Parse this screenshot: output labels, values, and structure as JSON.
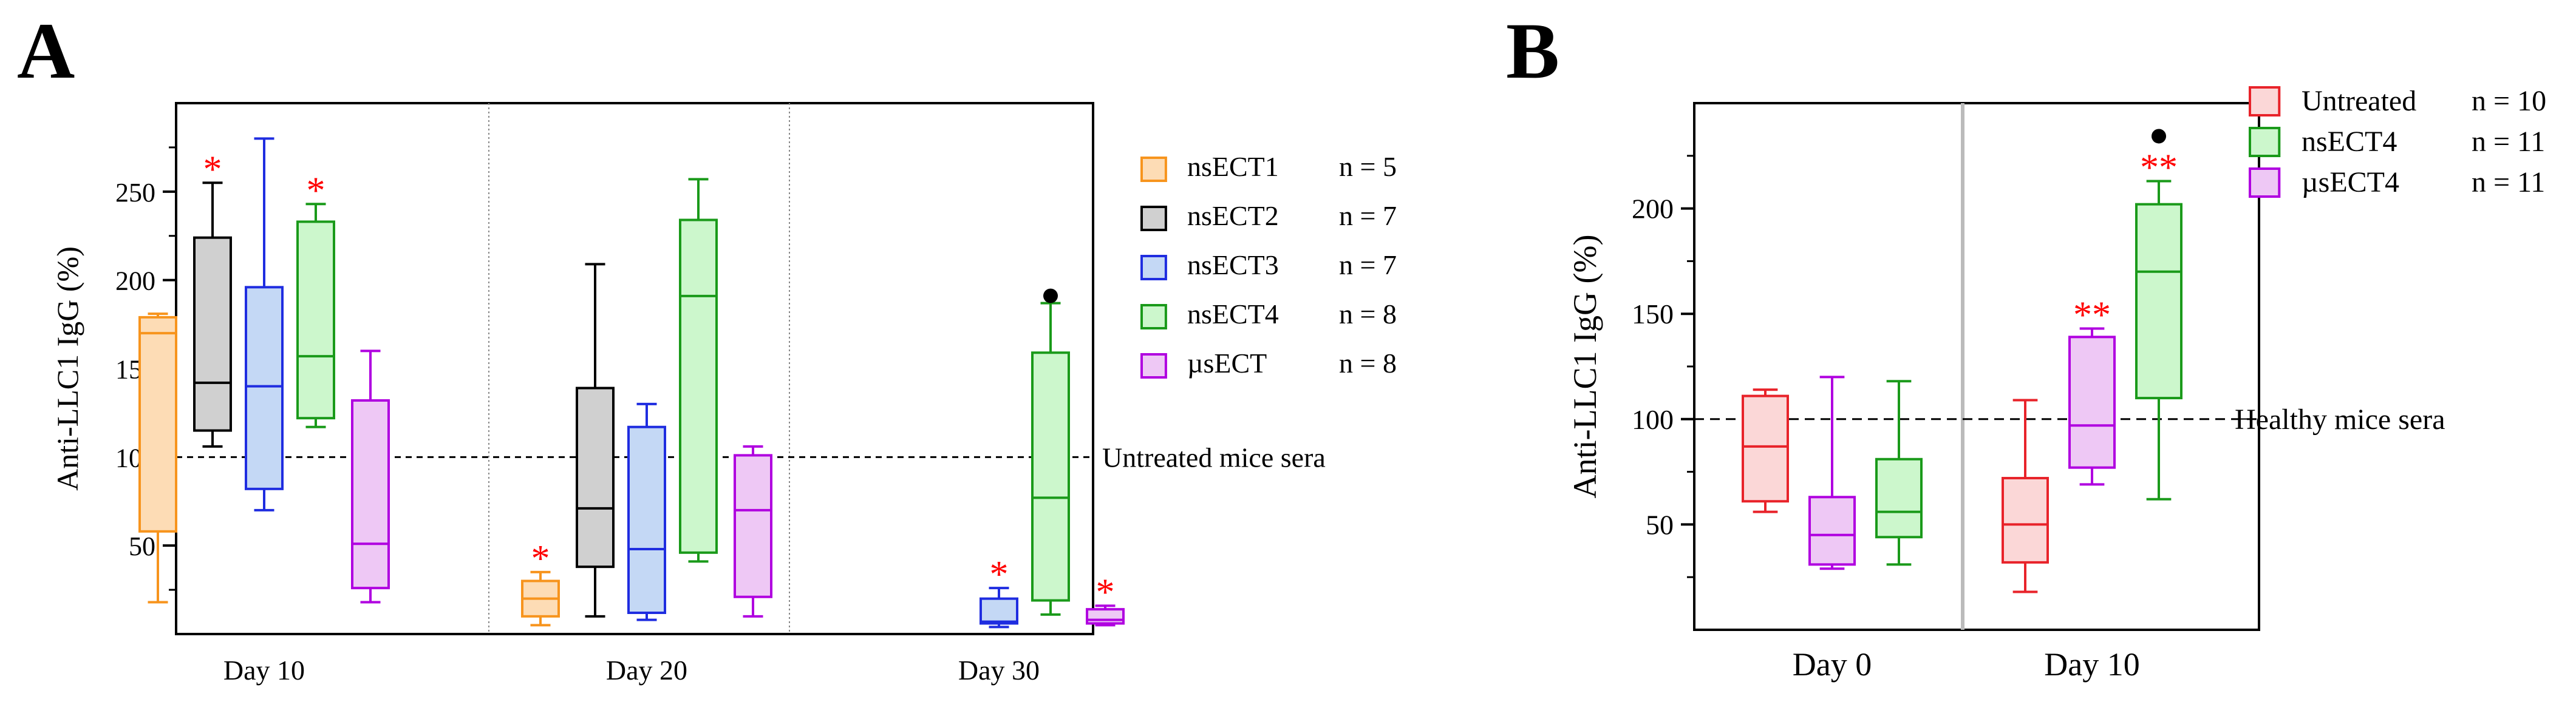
{
  "chart_data": [
    {
      "panel": "A",
      "type": "box",
      "ylabel": "Anti-LLC1  IgG (%)",
      "xlabel": "",
      "ylim": [
        0,
        300
      ],
      "yticks": [
        50,
        100,
        150,
        200,
        250
      ],
      "groups": [
        "Day 10",
        "Day 20",
        "Day 30"
      ],
      "grid": false,
      "legend_position": "right",
      "reference_line": {
        "value": 100,
        "label": "Untreated mice sera"
      },
      "series": [
        {
          "name": "nsECT1",
          "n_label": "n = 5",
          "color": "#F7941D",
          "fill": "#FDDCB5"
        },
        {
          "name": "nsECT2",
          "n_label": "n = 7",
          "color": "#000000",
          "fill": "#D0D0D0"
        },
        {
          "name": "nsECT3",
          "n_label": "n = 7",
          "color": "#1F2DE0",
          "fill": "#C4D8F5"
        },
        {
          "name": "nsECT4",
          "n_label": "n = 8",
          "color": "#1A9A1A",
          "fill": "#CCF7CC"
        },
        {
          "name": "µsECT",
          "n_label": "n = 8",
          "color": "#B000E0",
          "fill": "#EEC8F5"
        }
      ],
      "boxes": [
        {
          "group": "Day 10",
          "series": "nsECT1",
          "min": 18,
          "q1": 58,
          "median": 170,
          "q3": 179,
          "max": 181,
          "marker": ""
        },
        {
          "group": "Day 10",
          "series": "nsECT2",
          "min": 106,
          "q1": 115,
          "median": 142,
          "q3": 224,
          "max": 255,
          "marker": "*"
        },
        {
          "group": "Day 10",
          "series": "nsECT3",
          "min": 70,
          "q1": 82,
          "median": 140,
          "q3": 196,
          "max": 280,
          "marker": ""
        },
        {
          "group": "Day 10",
          "series": "nsECT4",
          "min": 117,
          "q1": 122,
          "median": 157,
          "q3": 233,
          "max": 243,
          "marker": "*"
        },
        {
          "group": "Day 10",
          "series": "µsECT",
          "min": 18,
          "q1": 26,
          "median": 51,
          "q3": 132,
          "max": 160,
          "marker": ""
        },
        {
          "group": "Day 20",
          "series": "nsECT1",
          "min": 5,
          "q1": 10,
          "median": 20,
          "q3": 30,
          "max": 35,
          "marker": "*"
        },
        {
          "group": "Day 20",
          "series": "nsECT2",
          "min": 10,
          "q1": 38,
          "median": 71,
          "q3": 139,
          "max": 209,
          "marker": ""
        },
        {
          "group": "Day 20",
          "series": "nsECT3",
          "min": 8,
          "q1": 12,
          "median": 48,
          "q3": 117,
          "max": 130,
          "marker": ""
        },
        {
          "group": "Day 20",
          "series": "nsECT4",
          "min": 41,
          "q1": 46,
          "median": 191,
          "q3": 234,
          "max": 257,
          "marker": ""
        },
        {
          "group": "Day 20",
          "series": "µsECT",
          "min": 10,
          "q1": 21,
          "median": 70,
          "q3": 101,
          "max": 106,
          "marker": ""
        },
        {
          "group": "Day 30",
          "series": "nsECT3",
          "min": 4,
          "q1": 6,
          "median": 7,
          "q3": 20,
          "max": 26,
          "marker": "*"
        },
        {
          "group": "Day 30",
          "series": "nsECT4",
          "min": 11,
          "q1": 19,
          "median": 77,
          "q3": 159,
          "max": 187,
          "marker": "●"
        },
        {
          "group": "Day 30",
          "series": "µsECT",
          "min": 5,
          "q1": 6,
          "median": 8,
          "q3": 14,
          "max": 16,
          "marker": "*"
        }
      ]
    },
    {
      "panel": "B",
      "type": "box",
      "ylabel": "Anti-LLC1 IgG (%)",
      "xlabel": "",
      "ylim": [
        0,
        250
      ],
      "yticks": [
        50,
        100,
        150,
        200
      ],
      "groups": [
        "Day 0",
        "Day 10"
      ],
      "grid": false,
      "legend_position": "top-right",
      "reference_line": {
        "value": 100,
        "label": "Healthy mice sera"
      },
      "series": [
        {
          "name": "Untreated",
          "n_label": "n = 10",
          "color": "#E8232A",
          "fill": "#FBD7D7"
        },
        {
          "name": "nsECT4",
          "n_label": "n = 11",
          "color": "#1A9A1A",
          "fill": "#CCF7CC"
        },
        {
          "name": "µsECT4",
          "n_label": "n = 11",
          "color": "#B000E0",
          "fill": "#EEC8F5"
        }
      ],
      "boxes": [
        {
          "group": "Day 0",
          "series": "Untreated",
          "min": 56,
          "q1": 61,
          "median": 87,
          "q3": 111,
          "max": 114,
          "marker": ""
        },
        {
          "group": "Day 0",
          "series": "µsECT4",
          "min": 29,
          "q1": 31,
          "median": 45,
          "q3": 63,
          "max": 120,
          "marker": ""
        },
        {
          "group": "Day 0",
          "series": "nsECT4",
          "min": 31,
          "q1": 44,
          "median": 56,
          "q3": 81,
          "max": 118,
          "marker": ""
        },
        {
          "group": "Day 10",
          "series": "Untreated",
          "min": 18,
          "q1": 32,
          "median": 50,
          "q3": 72,
          "max": 109,
          "marker": ""
        },
        {
          "group": "Day 10",
          "series": "µsECT4",
          "min": 69,
          "q1": 77,
          "median": 97,
          "q3": 139,
          "max": 143,
          "marker": "**"
        },
        {
          "group": "Day 10",
          "series": "nsECT4",
          "min": 62,
          "q1": 110,
          "median": 170,
          "q3": 202,
          "max": 213,
          "marker": "**●"
        }
      ]
    }
  ],
  "panel_labels": {
    "a": "A",
    "b": "B"
  },
  "accent_color": "#FF0000"
}
